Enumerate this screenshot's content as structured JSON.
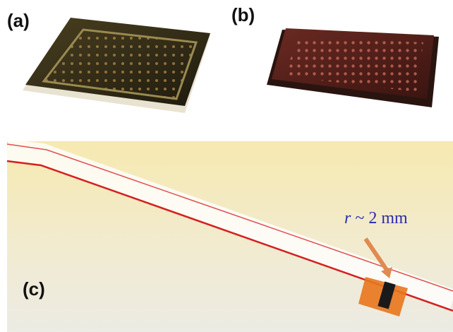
{
  "panels": [
    {
      "label": "(a)"
    },
    {
      "label": "(b)"
    },
    {
      "label": "(c)"
    }
  ],
  "annotation": {
    "variable": "r",
    "text": "~ 2 mm"
  }
}
